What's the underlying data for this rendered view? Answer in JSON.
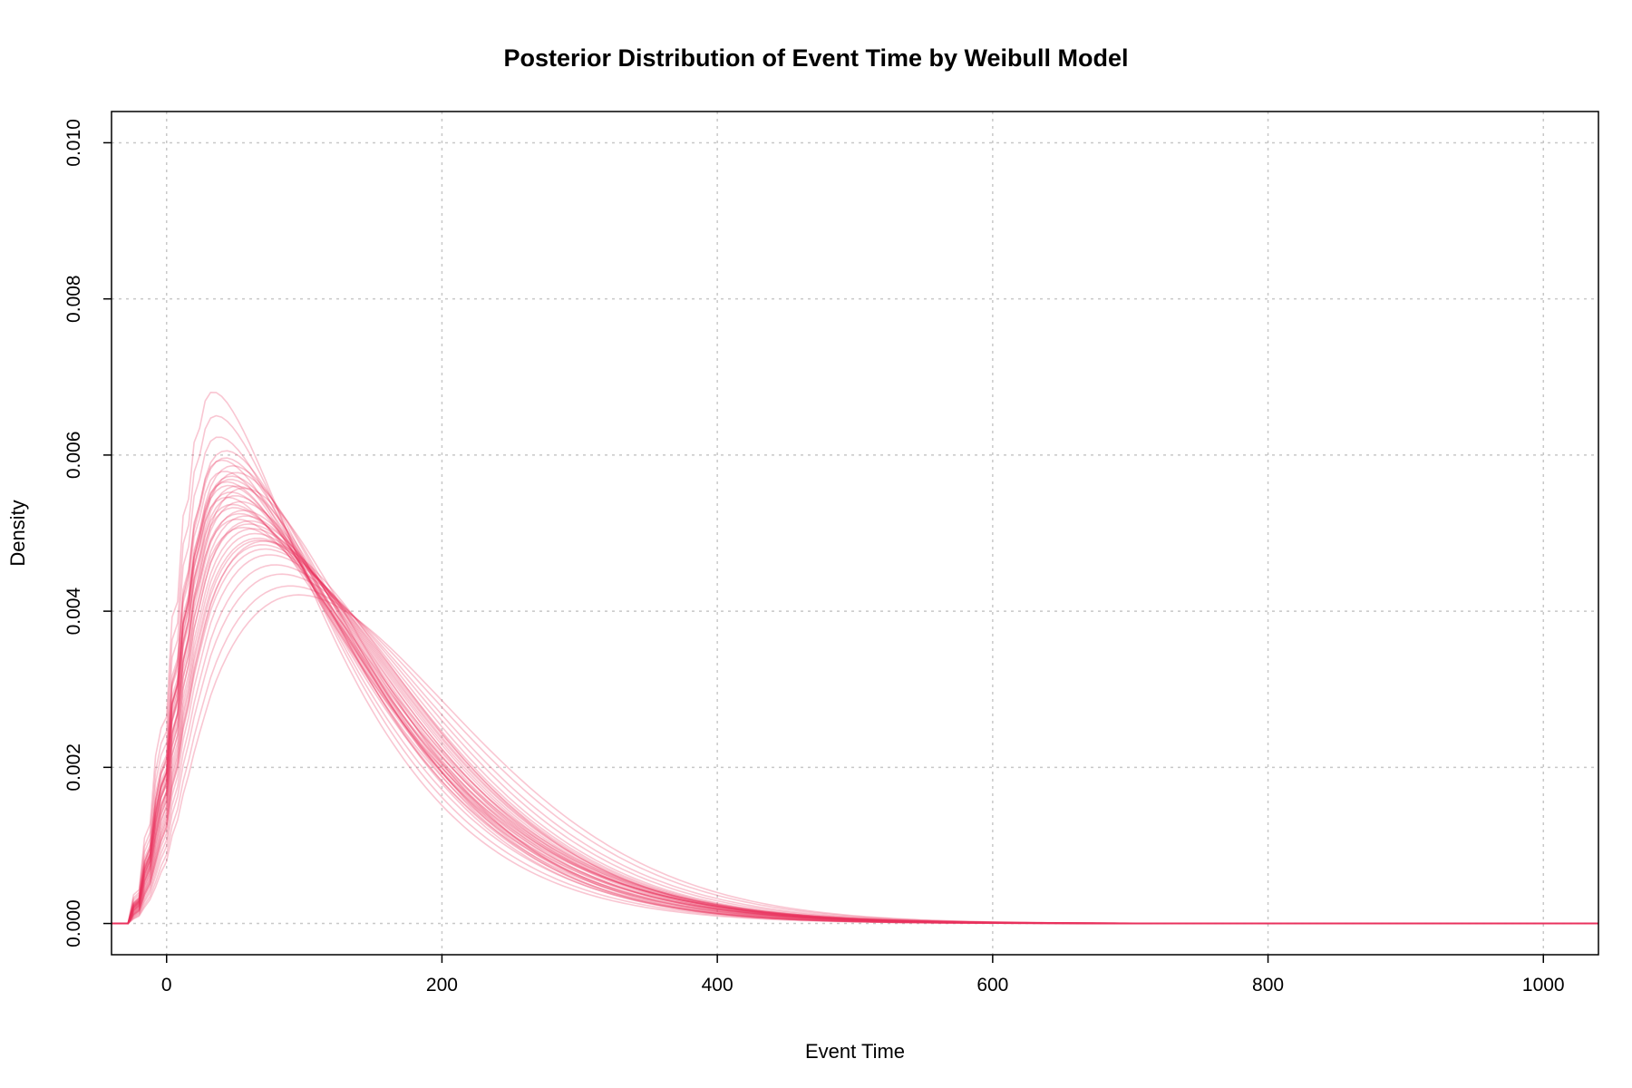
{
  "chart_data": {
    "type": "line",
    "title": "Posterior Distribution of Event Time by Weibull Model",
    "xlabel": "Event Time",
    "ylabel": "Density",
    "xlim": [
      -40,
      1040
    ],
    "ylim": [
      -0.0004,
      0.0104
    ],
    "xticks": [
      0,
      200,
      400,
      600,
      800,
      1000
    ],
    "xtick_labels": [
      "0",
      "200",
      "400",
      "600",
      "800",
      "1000"
    ],
    "yticks": [
      0.0,
      0.002,
      0.004,
      0.006,
      0.008,
      0.01
    ],
    "ytick_labels": [
      "0.000",
      "0.002",
      "0.004",
      "0.006",
      "0.008",
      "0.010"
    ],
    "grid": true,
    "legend": "none",
    "line_color": "#E8325F",
    "line_opacity": 0.28,
    "series_shape": "weibull",
    "series_params": [
      {
        "k": 1.3,
        "lambda": 130
      },
      {
        "k": 1.32,
        "lambda": 125
      },
      {
        "k": 1.34,
        "lambda": 122
      },
      {
        "k": 1.29,
        "lambda": 128
      },
      {
        "k": 1.27,
        "lambda": 132
      },
      {
        "k": 1.36,
        "lambda": 124
      },
      {
        "k": 1.31,
        "lambda": 135
      },
      {
        "k": 1.35,
        "lambda": 128
      },
      {
        "k": 1.4,
        "lambda": 140
      },
      {
        "k": 1.45,
        "lambda": 150
      },
      {
        "k": 1.42,
        "lambda": 145
      },
      {
        "k": 1.48,
        "lambda": 155
      },
      {
        "k": 1.38,
        "lambda": 138
      },
      {
        "k": 1.5,
        "lambda": 160
      },
      {
        "k": 1.44,
        "lambda": 148
      },
      {
        "k": 1.41,
        "lambda": 143
      },
      {
        "k": 1.46,
        "lambda": 152
      },
      {
        "k": 1.39,
        "lambda": 141
      },
      {
        "k": 1.43,
        "lambda": 147
      },
      {
        "k": 1.47,
        "lambda": 149
      },
      {
        "k": 1.37,
        "lambda": 136
      },
      {
        "k": 1.33,
        "lambda": 131
      },
      {
        "k": 1.28,
        "lambda": 127
      },
      {
        "k": 1.26,
        "lambda": 121
      },
      {
        "k": 1.3,
        "lambda": 118
      },
      {
        "k": 1.25,
        "lambda": 115
      },
      {
        "k": 1.24,
        "lambda": 110
      },
      {
        "k": 1.22,
        "lambda": 105
      },
      {
        "k": 1.52,
        "lambda": 165
      },
      {
        "k": 1.55,
        "lambda": 172
      },
      {
        "k": 1.58,
        "lambda": 178
      },
      {
        "k": 1.35,
        "lambda": 142
      },
      {
        "k": 1.32,
        "lambda": 139
      },
      {
        "k": 1.29,
        "lambda": 120
      },
      {
        "k": 1.31,
        "lambda": 126
      },
      {
        "k": 1.36,
        "lambda": 133
      },
      {
        "k": 1.4,
        "lambda": 129
      },
      {
        "k": 1.27,
        "lambda": 124
      },
      {
        "k": 1.34,
        "lambda": 137
      },
      {
        "k": 1.3,
        "lambda": 134
      }
    ]
  }
}
